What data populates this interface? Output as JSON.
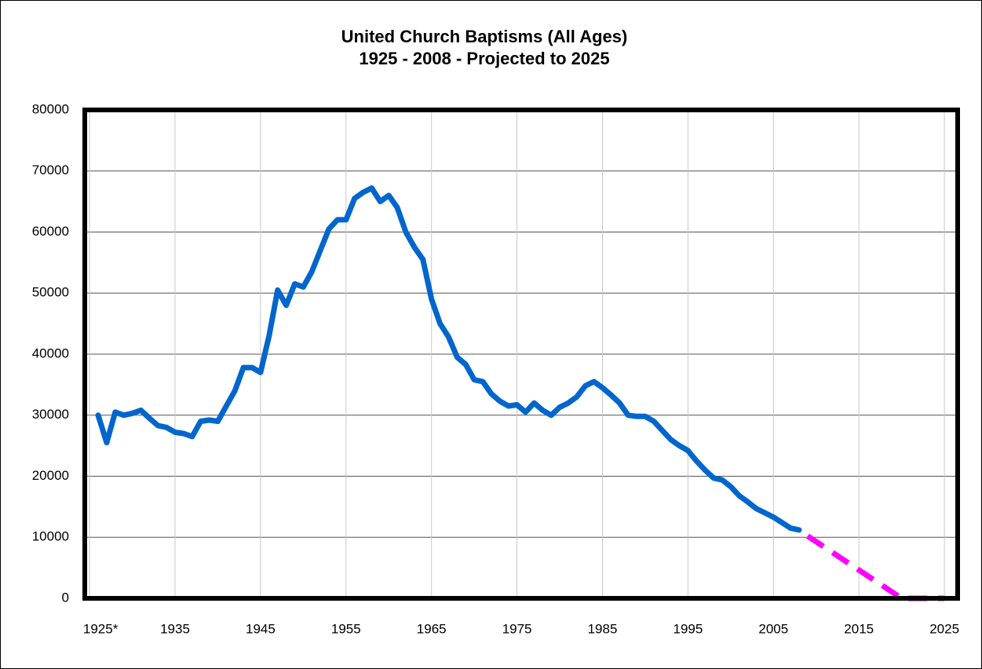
{
  "chart_data": {
    "type": "line",
    "title": "United Church Baptisms (All Ages)",
    "subtitle": "1925 - 2008 - Projected to 2025",
    "xlim": [
      1924.44,
      2026.55
    ],
    "xticks": [
      {
        "value": 1925,
        "label": "1925*"
      },
      1935,
      1945,
      1955,
      1965,
      1975,
      1985,
      1995,
      2005,
      2015,
      2025
    ],
    "ylim": [
      0,
      80000
    ],
    "yticks": [
      0,
      10000,
      20000,
      30000,
      40000,
      50000,
      60000,
      70000,
      80000
    ],
    "grid": true,
    "series": [
      {
        "color": "#0066cc",
        "dashed": false,
        "x": [
          1926,
          1927,
          1928,
          1929,
          1930,
          1931,
          1932,
          1933,
          1934,
          1935,
          1936,
          1937,
          1938,
          1939,
          1940,
          1941,
          1942,
          1943,
          1944,
          1945,
          1946,
          1947,
          1948,
          1949,
          1950,
          1951,
          1952,
          1953,
          1954,
          1955,
          1956,
          1957,
          1958,
          1959,
          1960,
          1961,
          1962,
          1963,
          1964,
          1965,
          1966,
          1967,
          1968,
          1969,
          1970,
          1971,
          1972,
          1973,
          1974,
          1975,
          1976,
          1977,
          1978,
          1979,
          1980,
          1981,
          1982,
          1983,
          1984,
          1985,
          1986,
          1987,
          1988,
          1989,
          1990,
          1991,
          1992,
          1993,
          1994,
          1995,
          1996,
          1997,
          1998,
          1999,
          2000,
          2001,
          2002,
          2003,
          2004,
          2005,
          2006,
          2007,
          2008
        ],
        "values": [
          30000,
          25500,
          30500,
          30000,
          30300,
          30800,
          29500,
          28300,
          28000,
          27200,
          27000,
          26500,
          29000,
          29200,
          29000,
          31500,
          34000,
          37800,
          37800,
          37000,
          43000,
          50500,
          48000,
          51500,
          51000,
          53500,
          57000,
          60500,
          62000,
          62000,
          65500,
          66500,
          67200,
          65000,
          66000,
          64000,
          60000,
          57500,
          55500,
          49000,
          45000,
          42800,
          39500,
          38300,
          35800,
          35500,
          33500,
          32300,
          31500,
          31700,
          30500,
          32000,
          30800,
          30000,
          31300,
          32000,
          33000,
          34800,
          35500,
          34500,
          33300,
          32000,
          30000,
          29800,
          29800,
          29000,
          27500,
          26000,
          25000,
          24200,
          22500,
          21000,
          19700,
          19400,
          18300,
          16800,
          15800,
          14700,
          14000,
          13300,
          12400,
          11500,
          11200
        ]
      },
      {
        "color": "#ff00ff",
        "dashed": true,
        "x": [
          2009,
          2020,
          2025
        ],
        "values": [
          10200,
          0,
          0
        ]
      }
    ]
  }
}
